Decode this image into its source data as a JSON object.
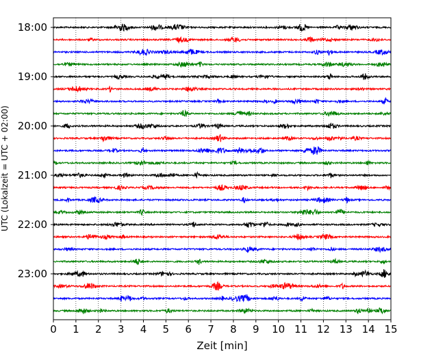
{
  "chart_data": {
    "type": "line",
    "title": "",
    "xlabel": "Zeit  [min]",
    "ylabel": "UTC (Lokalzeit = UTC + 02:00)",
    "xlim": [
      0,
      15
    ],
    "x_ticks": [
      0,
      1,
      2,
      3,
      4,
      5,
      6,
      7,
      8,
      9,
      10,
      11,
      12,
      13,
      14,
      15
    ],
    "x_tick_labels": [
      "0",
      "1",
      "2",
      "3",
      "4",
      "5",
      "6",
      "7",
      "8",
      "9",
      "10",
      "11",
      "12",
      "13",
      "14",
      "15"
    ],
    "y_tick_labels": [
      "18:00",
      "19:00",
      "20:00",
      "21:00",
      "22:00",
      "23:00"
    ],
    "grid": "vertical dotted lines at each minute",
    "legend": "none",
    "trace_start_times": [
      "18:00",
      "18:15",
      "18:30",
      "18:45",
      "19:00",
      "19:15",
      "19:30",
      "19:45",
      "20:00",
      "20:15",
      "20:30",
      "20:45",
      "21:00",
      "21:15",
      "21:30",
      "21:45",
      "22:00",
      "22:15",
      "22:30",
      "22:45",
      "23:00",
      "23:15",
      "23:30",
      "23:45"
    ],
    "trace_colors": [
      "#000000",
      "#ff0000",
      "#0000ff",
      "#008000"
    ],
    "trace_duration_min": 15
  }
}
